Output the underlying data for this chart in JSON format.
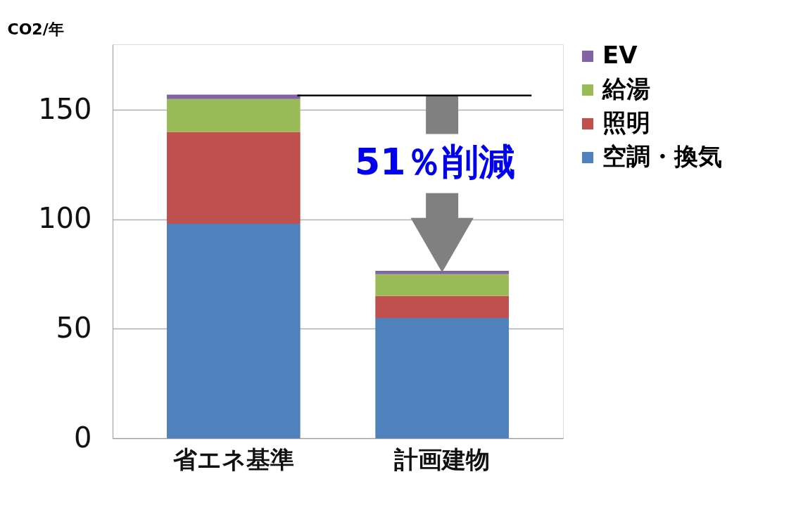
{
  "chart_data": {
    "type": "bar",
    "stacked": true,
    "ylabel": "CO2/年",
    "categories": [
      "省エネ基準",
      "計画建物"
    ],
    "series": [
      {
        "name": "空調・換気",
        "color": "#4f81bd",
        "values": [
          98,
          55
        ]
      },
      {
        "name": "照明",
        "color": "#c0504d",
        "values": [
          42,
          10
        ]
      },
      {
        "name": "給湯",
        "color": "#9bbb59",
        "values": [
          15,
          10
        ]
      },
      {
        "name": "EV",
        "color": "#8064a2",
        "values": [
          2,
          1.5
        ]
      }
    ],
    "ylim": [
      0,
      180
    ],
    "yticks": [
      0,
      50,
      100,
      150
    ],
    "grid": "y",
    "legend": "right",
    "ref_lines": [
      {
        "axis": "y",
        "value": 156.6,
        "label": null,
        "color": "#000000"
      }
    ],
    "annotations": [
      "51％削減"
    ]
  }
}
